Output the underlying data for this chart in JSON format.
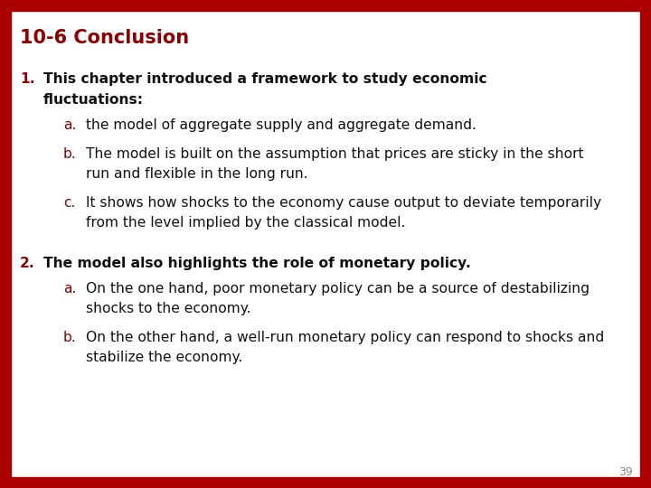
{
  "title": "10-6 Conclusion",
  "title_color": "#8B0000",
  "title_fontsize": 15,
  "background_color": "#FFFFFF",
  "border_color": "#AA0000",
  "border_thickness": 0.022,
  "page_number": "39",
  "items": [
    {
      "number": "1.",
      "number_color": "#8B0000",
      "bold_text": "This chapter introduced a framework to study economic\nfluctuations:",
      "sub_items": [
        {
          "letter": "a.",
          "letter_color": "#8B0000",
          "text": "the model of aggregate supply and aggregate demand."
        },
        {
          "letter": "b.",
          "letter_color": "#8B0000",
          "text": "The model is built on the assumption that prices are sticky in the short\nrun and flexible in the long run."
        },
        {
          "letter": "c.",
          "letter_color": "#8B0000",
          "text": "It shows how shocks to the economy cause output to deviate temporarily\nfrom the level implied by the classical model."
        }
      ]
    },
    {
      "number": "2.",
      "number_color": "#8B0000",
      "bold_text": "The model also highlights the role of monetary policy.",
      "sub_items": [
        {
          "letter": "a.",
          "letter_color": "#8B0000",
          "text": "On the one hand, poor monetary policy can be a source of destabilizing\nshocks to the economy."
        },
        {
          "letter": "b.",
          "letter_color": "#8B0000",
          "text": "On the other hand, a well-run monetary policy can respond to shocks and\nstabilize the economy."
        }
      ]
    }
  ]
}
